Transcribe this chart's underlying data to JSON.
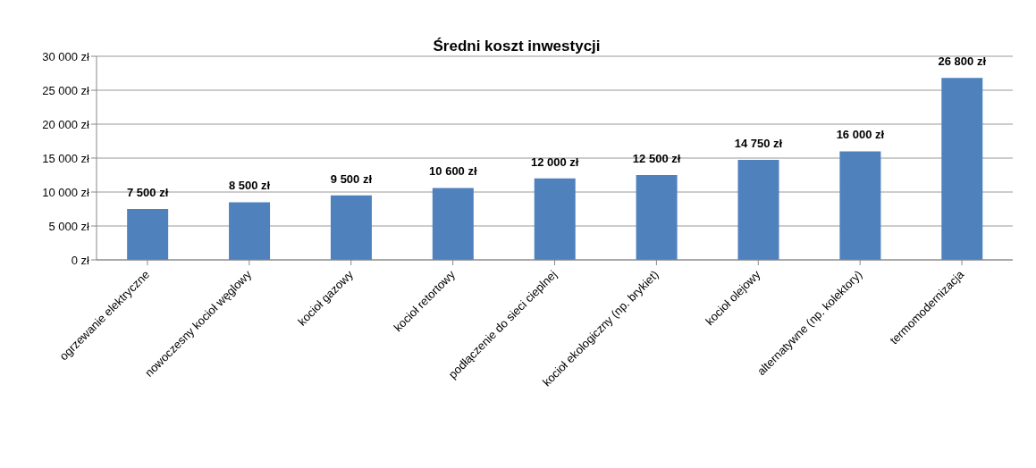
{
  "chart_data": {
    "type": "bar",
    "title": "Średni koszt inwestycji",
    "categories": [
      "ogrzewanie elektryczne",
      "nowoczesny kocioł węglowy",
      "kocioł gazowy",
      "kocioł retortowy",
      "podłączenie do sieci cieplnej",
      "kocioł ekologiczny (np. brykiet)",
      "kocioł olejowy",
      "alternatywne (np. kolektory)",
      "termomodernizacja"
    ],
    "values": [
      7500,
      8500,
      9500,
      10600,
      12000,
      12500,
      14750,
      16000,
      26800
    ],
    "value_labels": [
      "7 500 zł",
      "8 500 zł",
      "9 500 zł",
      "10 600 zł",
      "12 000 zł",
      "12 500 zł",
      "14 750 zł",
      "16 000 zł",
      "26 800 zł"
    ],
    "color": "#4f81bd",
    "ylim": [
      0,
      30000
    ],
    "yticks": [
      {
        "value": 0,
        "label": "0 zł"
      },
      {
        "value": 5000,
        "label": "5 000 zł"
      },
      {
        "value": 10000,
        "label": "10 000 zł"
      },
      {
        "value": 15000,
        "label": "15 000 zł"
      },
      {
        "value": 20000,
        "label": "20 000 zł"
      },
      {
        "value": 25000,
        "label": "25 000 zł"
      },
      {
        "value": 30000,
        "label": "30 000 zł"
      }
    ],
    "grid": "y",
    "legend": false
  }
}
